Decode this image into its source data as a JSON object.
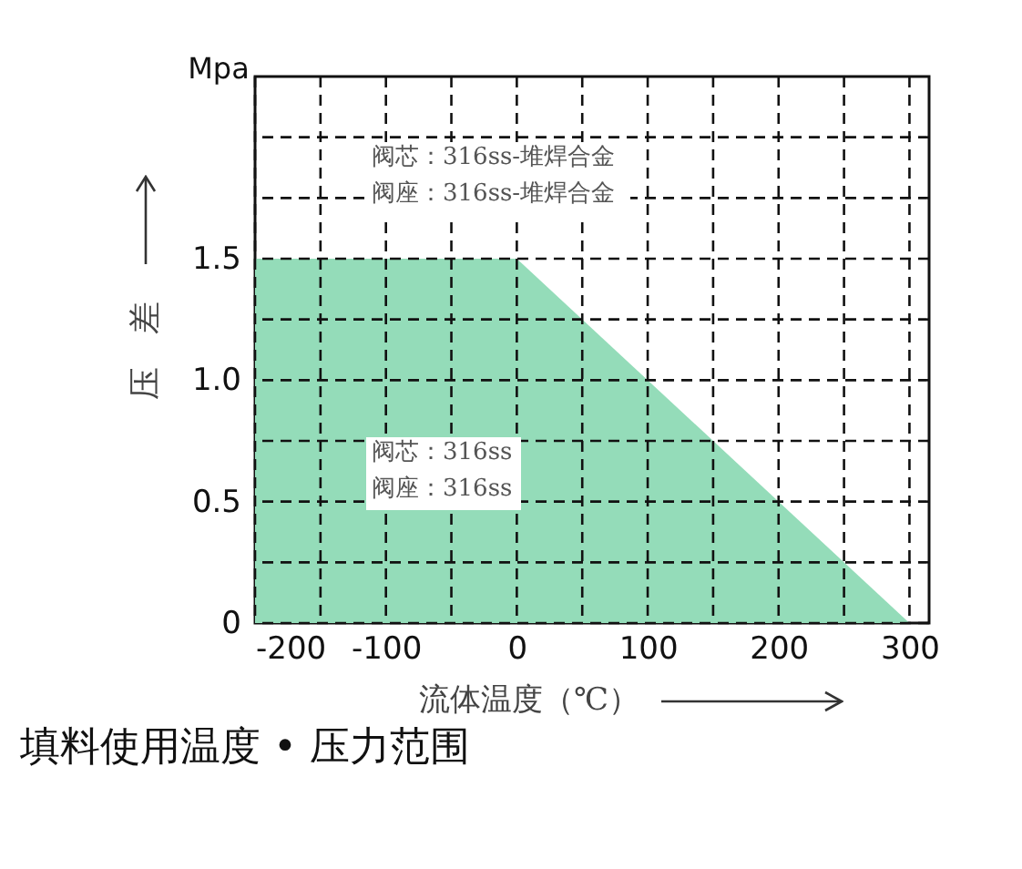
{
  "chart_data": {
    "type": "area",
    "title": "填料使用温度 • 压力范围",
    "xlabel": "流体温度（℃）",
    "ylabel": "压　差",
    "annotations": [
      "Mpa",
      "阀芯：316ss-堆焊合金",
      "阀座：316ss-堆焊合金",
      "阀芯：316ss",
      "阀座：316ss"
    ],
    "x": [
      -200,
      0,
      300
    ],
    "series": [
      {
        "color": "#94dcb9",
        "values": [
          1.5,
          1.5,
          0
        ]
      }
    ],
    "xlim": [
      -200,
      315
    ],
    "xticks": [
      -200,
      {
        "value": -150,
        "label": null
      },
      -100,
      {
        "value": -50,
        "label": null
      },
      0,
      {
        "value": 50,
        "label": null
      },
      100,
      {
        "value": 150,
        "label": null
      },
      200,
      {
        "value": 250,
        "label": null
      },
      300
    ],
    "ylim": [
      0,
      2.25
    ],
    "yticks": [
      0,
      {
        "value": 0.25,
        "label": null
      },
      0.5,
      {
        "value": 0.75,
        "label": null
      },
      {
        "value": 1,
        "label": "1.0"
      },
      {
        "value": 1.25,
        "label": null
      },
      1.5,
      {
        "value": 1.75,
        "label": null
      },
      {
        "value": 2,
        "label": null
      }
    ],
    "grid": true,
    "line_style": "dashed"
  }
}
